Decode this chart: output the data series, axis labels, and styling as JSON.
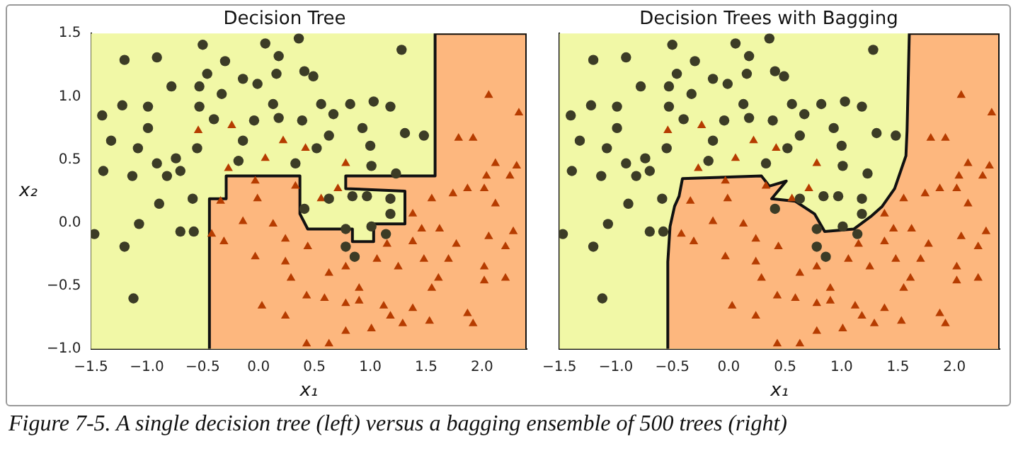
{
  "chart_data": [
    {
      "type": "scatter",
      "title": "Decision Tree",
      "xlabel": "x₁",
      "ylabel": "x₂",
      "xlim": [
        -1.5,
        2.4
      ],
      "ylim": [
        -1.0,
        1.5
      ],
      "xticks": [
        {
          "value": -1.5,
          "label": "−1.5"
        },
        {
          "value": -1.0,
          "label": "−1.0"
        },
        {
          "value": -0.5,
          "label": "−0.5"
        },
        {
          "value": 0.0,
          "label": "0.0"
        },
        {
          "value": 0.5,
          "label": "0.5"
        },
        {
          "value": 1.0,
          "label": "1.0"
        },
        {
          "value": 1.5,
          "label": "1.5"
        },
        {
          "value": 2.0,
          "label": "2.0"
        }
      ],
      "yticks": [
        {
          "value": -1.0,
          "label": "−1.0"
        },
        {
          "value": -0.5,
          "label": "−0.5"
        },
        {
          "value": 0.0,
          "label": "0.0"
        },
        {
          "value": 0.5,
          "label": "0.5"
        },
        {
          "value": 1.0,
          "label": "1.0"
        },
        {
          "value": 1.5,
          "label": "1.5"
        }
      ],
      "annotations": [
        "Figure 7-5. A single decision tree (left) versus a bagging ensemble of 500 trees (right)"
      ],
      "series": [
        {
          "type": "area",
          "color": "#fdb77e",
          "x": [
            -0.44,
            -0.44,
            -0.29,
            -0.29,
            0.37,
            0.37,
            0.44,
            0.84,
            0.84,
            1.03,
            1.03,
            1.31,
            1.31,
            0.78,
            0.78,
            1.58,
            1.58,
            2.4,
            2.4
          ],
          "values": [
            -1.0,
            0.19,
            0.19,
            0.37,
            0.37,
            0.07,
            -0.05,
            -0.05,
            -0.15,
            -0.15,
            -0.01,
            -0.01,
            0.25,
            0.27,
            0.37,
            0.37,
            1.5,
            1.5,
            -1.0
          ]
        },
        {
          "type": "scatter",
          "marker": "circle",
          "color": "#3c3c26",
          "x": [
            -1.2,
            -0.91,
            -0.5,
            0.06,
            0.36,
            -0.78,
            -1.4,
            -1.22,
            -0.99,
            -0.99,
            -1.32,
            -1.39,
            -1.13,
            -1.47,
            -1.2,
            -1.07,
            -1.12,
            -0.89,
            -0.7,
            -0.58,
            -0.59,
            -0.82,
            -0.74,
            -0.55,
            -0.53,
            -0.53,
            -0.46,
            -0.4,
            -0.3,
            -0.33,
            -0.14,
            -0.01,
            0.18,
            0.16,
            -0.04,
            0.13,
            0.18,
            0.41,
            0.49,
            0.39,
            0.56,
            0.67,
            0.63,
            0.82,
            1.03,
            1.18,
            1.28,
            0.93,
            1.0,
            1.31,
            1.48,
            1.01,
            1.23,
            0.84,
            0.97,
            1.18,
            1.18,
            1.14,
            1.01,
            0.78,
            0.78,
            0.86,
            0.41,
            0.63,
            0.52,
            0.33,
            -0.14,
            -0.18,
            -0.7,
            -0.91,
            -1.08
          ],
          "values": [
            1.29,
            1.31,
            1.41,
            1.42,
            1.46,
            1.08,
            0.85,
            0.93,
            0.92,
            0.75,
            0.65,
            0.41,
            0.37,
            -0.09,
            -0.19,
            -0.01,
            -0.6,
            0.15,
            -0.07,
            -0.07,
            0.19,
            0.37,
            0.51,
            0.59,
            0.92,
            1.08,
            1.18,
            0.82,
            1.28,
            1.02,
            1.14,
            1.1,
            1.32,
            1.18,
            0.81,
            0.94,
            0.83,
            1.2,
            1.16,
            0.81,
            0.94,
            0.86,
            0.69,
            0.94,
            0.96,
            0.92,
            1.37,
            0.75,
            0.61,
            0.71,
            0.69,
            0.45,
            0.39,
            0.21,
            0.21,
            0.19,
            0.07,
            -0.09,
            -0.03,
            -0.05,
            -0.19,
            -0.27,
            0.11,
            0.19,
            0.59,
            0.47,
            0.65,
            0.49,
            0.41,
            0.47,
            0.59
          ]
        },
        {
          "type": "scatter",
          "marker": "triangle",
          "color": "#b63c00",
          "x": [
            -0.54,
            -0.24,
            0.22,
            0.42,
            0.78,
            0.06,
            -0.27,
            -0.34,
            -0.42,
            -0.31,
            -0.03,
            -0.01,
            -0.14,
            -0.03,
            0.13,
            0.24,
            0.33,
            0.56,
            0.71,
            0.03,
            0.24,
            0.43,
            0.43,
            0.63,
            0.59,
            0.78,
            0.78,
            1.01,
            0.9,
            1.12,
            1.18,
            1.29,
            1.38,
            1.53,
            1.87,
            1.92,
            1.55,
            1.61,
            1.7,
            2.02,
            2.21,
            2.02,
            1.48,
            1.38,
            1.46,
            1.62,
            1.77,
            2.06,
            2.21,
            2.28,
            1.38,
            1.55,
            1.74,
            1.87,
            2.02,
            2.12,
            2.25,
            2.31,
            2.12,
            1.79,
            1.92,
            2.06,
            2.33,
            2.04,
            1.25,
            1.15,
            1.06,
            0.9,
            0.24,
            0.29,
            0.63,
            0.44,
            0.78
          ],
          "values": [
            0.73,
            0.77,
            0.65,
            0.59,
            0.47,
            0.51,
            0.43,
            0.17,
            -0.09,
            -0.15,
            0.33,
            0.19,
            0.01,
            -0.27,
            -0.01,
            -0.13,
            0.29,
            0.19,
            0.27,
            -0.66,
            -0.74,
            -0.58,
            -0.96,
            -0.96,
            -0.6,
            -0.64,
            -0.86,
            -0.84,
            -0.62,
            -0.66,
            -0.74,
            -0.8,
            -0.68,
            -0.78,
            -0.72,
            -0.8,
            -0.52,
            -0.44,
            -0.29,
            -0.35,
            -0.44,
            -0.46,
            -0.29,
            -0.15,
            -0.05,
            -0.05,
            -0.17,
            -0.11,
            -0.19,
            -0.07,
            0.07,
            0.19,
            0.23,
            0.27,
            0.27,
            0.15,
            0.37,
            0.45,
            0.47,
            0.67,
            0.67,
            1.01,
            0.87,
            0.37,
            -0.35,
            -0.17,
            -0.29,
            -0.52,
            -0.31,
            -0.44,
            -0.4,
            -0.19,
            -0.35
          ]
        }
      ]
    },
    {
      "type": "scatter",
      "title": "Decision Trees with Bagging",
      "xlabel": "x₁",
      "tick_labels": "x",
      "xlim": [
        -1.5,
        2.4
      ],
      "ylim": [
        -1.0,
        1.5
      ],
      "xticks": [
        {
          "value": -1.5,
          "label": "−1.5"
        },
        {
          "value": -1.0,
          "label": "−1.0"
        },
        {
          "value": -0.5,
          "label": "−0.5"
        },
        {
          "value": 0.0,
          "label": "0.0"
        },
        {
          "value": 0.5,
          "label": "0.5"
        },
        {
          "value": 1.0,
          "label": "1.0"
        },
        {
          "value": 1.5,
          "label": "1.5"
        },
        {
          "value": 2.0,
          "label": "2.0"
        }
      ],
      "yticks": [
        {
          "value": -1.0,
          "label": null
        },
        {
          "value": -0.5,
          "label": null
        },
        {
          "value": 0.0,
          "label": null
        },
        {
          "value": 0.5,
          "label": null
        },
        {
          "value": 1.0,
          "label": null
        },
        {
          "value": 1.5,
          "label": null
        }
      ],
      "series": [
        {
          "type": "area",
          "color": "#fdb77e",
          "x": [
            -0.54,
            -0.54,
            -0.52,
            -0.48,
            -0.44,
            -0.41,
            0.29,
            0.36,
            0.51,
            0.38,
            0.59,
            0.76,
            0.85,
            1.11,
            1.26,
            1.36,
            1.47,
            1.57,
            1.58,
            1.6,
            2.4,
            2.4
          ],
          "values": [
            -1.0,
            -0.31,
            -0.03,
            0.13,
            0.21,
            0.35,
            0.37,
            0.29,
            0.33,
            0.19,
            0.17,
            0.07,
            -0.07,
            -0.05,
            0.05,
            0.13,
            0.27,
            0.53,
            0.73,
            1.5,
            1.5,
            -1.0
          ]
        },
        {
          "type": "scatter",
          "marker": "circle",
          "color": "#3c3c26",
          "x": [
            -1.2,
            -0.91,
            -0.5,
            0.06,
            0.36,
            -0.78,
            -1.4,
            -1.22,
            -0.99,
            -0.99,
            -1.32,
            -1.39,
            -1.13,
            -1.47,
            -1.2,
            -1.07,
            -1.12,
            -0.89,
            -0.7,
            -0.58,
            -0.59,
            -0.82,
            -0.74,
            -0.55,
            -0.53,
            -0.53,
            -0.46,
            -0.4,
            -0.3,
            -0.33,
            -0.14,
            -0.01,
            0.18,
            0.16,
            -0.04,
            0.13,
            0.18,
            0.41,
            0.49,
            0.39,
            0.56,
            0.67,
            0.63,
            0.82,
            1.03,
            1.18,
            1.28,
            0.93,
            1.0,
            1.31,
            1.48,
            1.01,
            1.23,
            0.84,
            0.97,
            1.18,
            1.18,
            1.14,
            1.01,
            0.78,
            0.78,
            0.86,
            0.41,
            0.63,
            0.52,
            0.33,
            -0.14,
            -0.18,
            -0.7,
            -0.91,
            -1.08
          ],
          "values": [
            1.29,
            1.31,
            1.41,
            1.42,
            1.46,
            1.08,
            0.85,
            0.93,
            0.92,
            0.75,
            0.65,
            0.41,
            0.37,
            -0.09,
            -0.19,
            -0.01,
            -0.6,
            0.15,
            -0.07,
            -0.07,
            0.19,
            0.37,
            0.51,
            0.59,
            0.92,
            1.08,
            1.18,
            0.82,
            1.28,
            1.02,
            1.14,
            1.1,
            1.32,
            1.18,
            0.81,
            0.94,
            0.83,
            1.2,
            1.16,
            0.81,
            0.94,
            0.86,
            0.69,
            0.94,
            0.96,
            0.92,
            1.37,
            0.75,
            0.61,
            0.71,
            0.69,
            0.45,
            0.39,
            0.21,
            0.21,
            0.19,
            0.07,
            -0.09,
            -0.03,
            -0.05,
            -0.19,
            -0.27,
            0.11,
            0.19,
            0.59,
            0.47,
            0.65,
            0.49,
            0.41,
            0.47,
            0.59
          ]
        },
        {
          "type": "scatter",
          "marker": "triangle",
          "color": "#b63c00",
          "x": [
            -0.54,
            -0.24,
            0.22,
            0.42,
            0.78,
            0.06,
            -0.27,
            -0.34,
            -0.42,
            -0.31,
            -0.03,
            -0.01,
            -0.14,
            -0.03,
            0.13,
            0.24,
            0.33,
            0.56,
            0.71,
            0.03,
            0.24,
            0.43,
            0.43,
            0.63,
            0.59,
            0.78,
            0.78,
            1.01,
            0.9,
            1.12,
            1.18,
            1.29,
            1.38,
            1.53,
            1.87,
            1.92,
            1.55,
            1.61,
            1.7,
            2.02,
            2.21,
            2.02,
            1.48,
            1.38,
            1.46,
            1.62,
            1.77,
            2.06,
            2.21,
            2.28,
            1.38,
            1.55,
            1.74,
            1.87,
            2.02,
            2.12,
            2.25,
            2.31,
            2.12,
            1.79,
            1.92,
            2.06,
            2.33,
            2.04,
            1.25,
            1.15,
            1.06,
            0.9,
            0.24,
            0.29,
            0.63,
            0.44,
            0.78
          ],
          "values": [
            0.73,
            0.77,
            0.65,
            0.59,
            0.47,
            0.51,
            0.43,
            0.17,
            -0.09,
            -0.15,
            0.33,
            0.19,
            0.01,
            -0.27,
            -0.01,
            -0.13,
            0.29,
            0.19,
            0.27,
            -0.66,
            -0.74,
            -0.58,
            -0.96,
            -0.96,
            -0.6,
            -0.64,
            -0.86,
            -0.84,
            -0.62,
            -0.66,
            -0.74,
            -0.8,
            -0.68,
            -0.78,
            -0.72,
            -0.8,
            -0.52,
            -0.44,
            -0.29,
            -0.35,
            -0.44,
            -0.46,
            -0.29,
            -0.15,
            -0.05,
            -0.05,
            -0.17,
            -0.11,
            -0.19,
            -0.07,
            0.07,
            0.19,
            0.23,
            0.27,
            0.27,
            0.15,
            0.37,
            0.45,
            0.47,
            0.67,
            0.67,
            1.01,
            0.87,
            0.37,
            -0.35,
            -0.17,
            -0.29,
            -0.52,
            -0.31,
            -0.44,
            -0.4,
            -0.19,
            -0.35
          ]
        }
      ]
    }
  ]
}
